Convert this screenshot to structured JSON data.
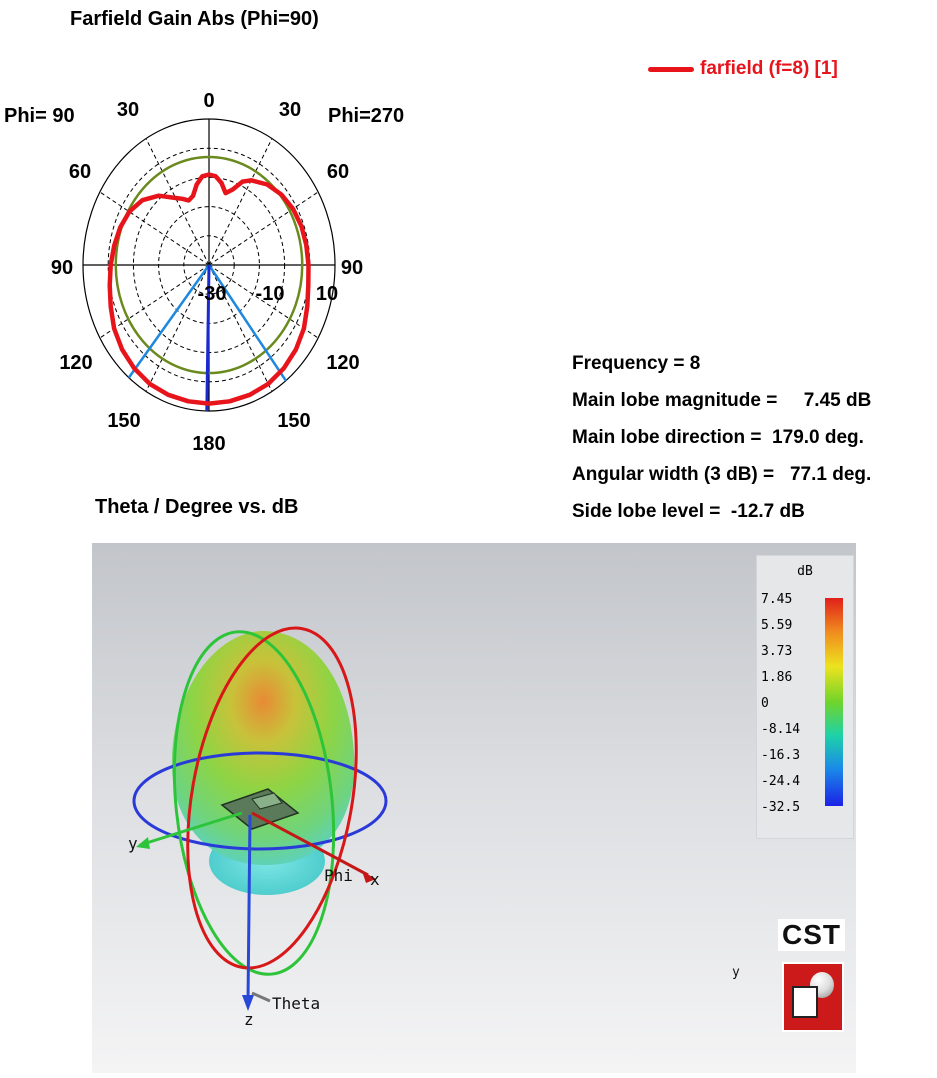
{
  "chart_data": {
    "type": "polar",
    "title": "Farfield Gain Abs (Phi=90)",
    "xlabel": "Theta / Degree vs. dB",
    "left_half_label": "Phi= 90",
    "right_half_label": "Phi=270",
    "angle_tick_labels": {
      "top": "0",
      "left_30": "30",
      "right_30": "30",
      "left_60": "60",
      "right_60": "60",
      "left_90": "90",
      "right_90": "90",
      "left_120": "120",
      "right_120": "120",
      "left_150": "150",
      "right_150": "150",
      "bottom": "180"
    },
    "radial_tick_labels": [
      "-30",
      "-10",
      "10"
    ],
    "radial_range_db": [
      -40,
      10
    ],
    "series": [
      {
        "name": "farfield (f=8) [1]",
        "color": "#e8141c",
        "theta_deg": [
          0,
          5,
          10,
          15,
          20,
          25,
          30,
          40,
          50,
          60,
          70,
          80,
          90,
          100,
          110,
          120,
          130,
          140,
          150,
          160,
          170,
          180
        ],
        "left_gain_db": [
          -9.0,
          -9.5,
          -12.0,
          -15.5,
          -16.5,
          -15.0,
          -13.5,
          -9.0,
          -5.5,
          -3.5,
          -2.5,
          -1.8,
          -1.0,
          0.0,
          1.5,
          3.5,
          5.0,
          6.2,
          7.0,
          7.3,
          7.4,
          7.45
        ],
        "right_gain_db": [
          -9.0,
          -9.5,
          -11.5,
          -14.5,
          -12.5,
          -8.5,
          -6.5,
          -4.0,
          -2.5,
          -1.5,
          -1.0,
          -0.8,
          -0.5,
          0.0,
          1.5,
          3.5,
          5.0,
          6.2,
          7.0,
          7.3,
          7.4,
          7.45
        ]
      }
    ],
    "reference_circle_db": -3.0,
    "main_lobe_direction_deg": 179.0,
    "beam_width_markers_deg": [
      140.5,
      217.6
    ]
  },
  "stats": {
    "frequency": "Frequency = 8",
    "main_lobe_magnitude": "Main lobe magnitude =     7.45 dB",
    "main_lobe_direction": "Main lobe direction =  179.0 deg.",
    "angular_width": "Angular width (3 dB) =   77.1 deg.",
    "side_lobe_level": "Side lobe level =  -12.7 dB"
  },
  "view3d": {
    "axis_labels": {
      "x": "x",
      "y": "y",
      "z": "z",
      "phi": "Phi",
      "theta": "Theta"
    },
    "colorbar": {
      "unit": "dB",
      "ticks": [
        "7.45",
        "5.59",
        "3.73",
        "1.86",
        "0",
        "-8.14",
        "-16.3",
        "-24.4",
        "-32.5"
      ]
    },
    "logo_text": "CST",
    "mini_axis_label": "y"
  }
}
